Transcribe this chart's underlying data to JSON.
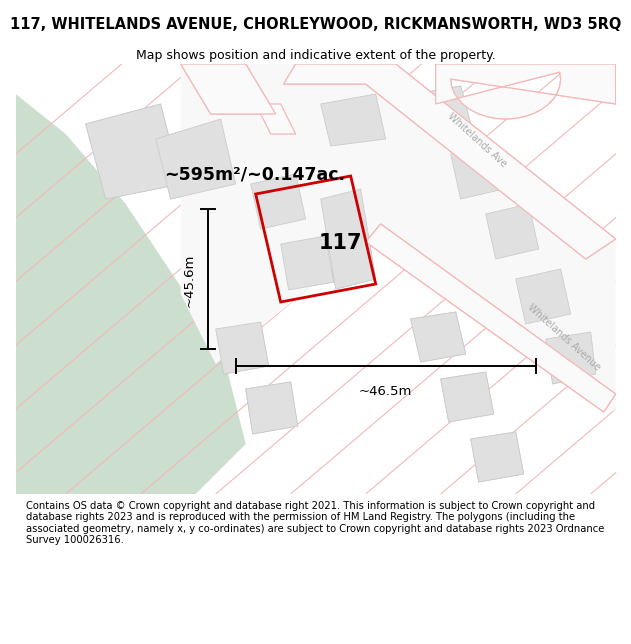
{
  "title": "117, WHITELANDS AVENUE, CHORLEYWOOD, RICKMANSWORTH, WD3 5RQ",
  "subtitle": "Map shows position and indicative extent of the property.",
  "footer": "Contains OS data © Crown copyright and database right 2021. This information is subject to Crown copyright and database rights 2023 and is reproduced with the permission of HM Land Registry. The polygons (including the associated geometry, namely x, y co-ordinates) are subject to Crown copyright and database rights 2023 Ordnance Survey 100026316.",
  "map_bg": "#f5f5f5",
  "green_color": "#ccdece",
  "road_pink": "#f4b8b8",
  "building_fill": "#e0e0e0",
  "building_edge": "#cccccc",
  "plot_color": "#cc0000",
  "area_label": "~595m²/~0.147ac.",
  "dim_w": "~46.5m",
  "dim_h": "~45.6m",
  "title_fontsize": 10.5,
  "subtitle_fontsize": 9,
  "footer_fontsize": 7.2,
  "label_117_fontsize": 15,
  "area_fontsize": 12.5,
  "dim_fontsize": 9.5
}
